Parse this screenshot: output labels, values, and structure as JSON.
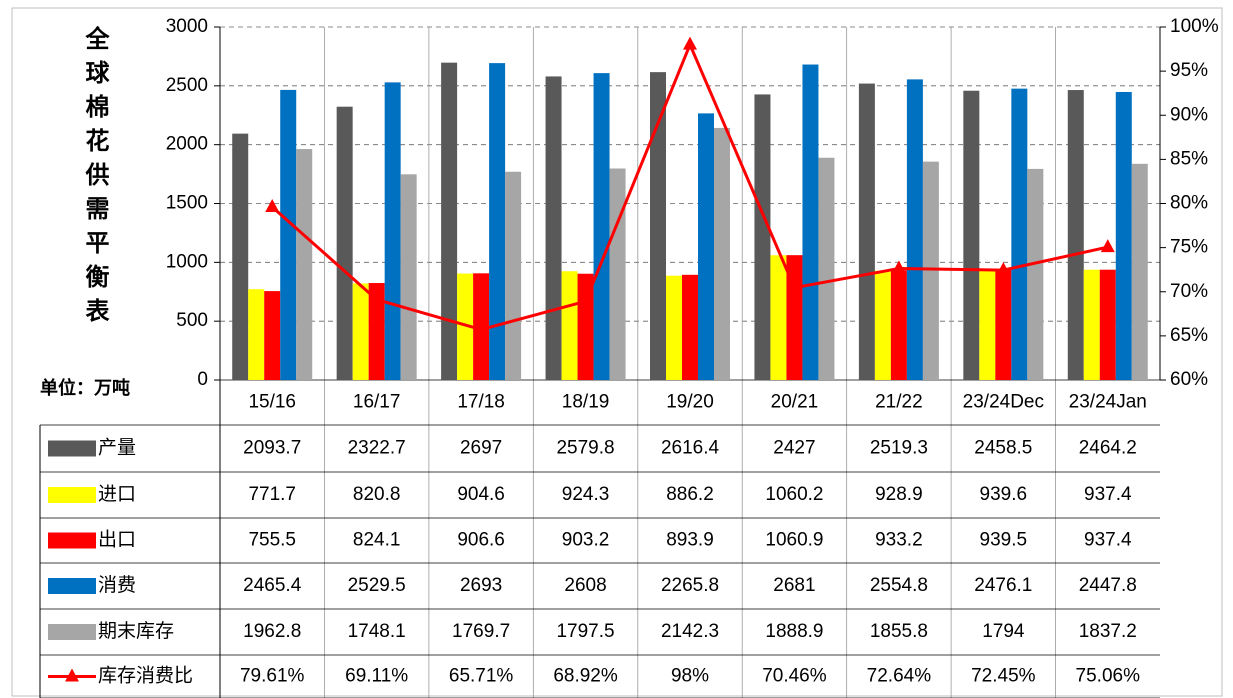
{
  "chart_data": {
    "type": "bar",
    "title": "全球棉花供需平衡表",
    "unit_label": "单位：万吨",
    "categories": [
      "15/16",
      "16/17",
      "17/18",
      "18/19",
      "19/20",
      "20/21",
      "21/22",
      "23/24Dec",
      "23/24Jan"
    ],
    "series": [
      {
        "name": "产量",
        "color": "#595959",
        "values": [
          2093.7,
          2322.7,
          2697,
          2579.8,
          2616.4,
          2427,
          2519.3,
          2458.5,
          2464.2
        ]
      },
      {
        "name": "进口",
        "color": "#ffff00",
        "values": [
          771.7,
          820.8,
          904.6,
          924.3,
          886.2,
          1060.2,
          928.9,
          939.6,
          937.4
        ]
      },
      {
        "name": "出口",
        "color": "#ff0000",
        "values": [
          755.5,
          824.1,
          906.6,
          903.2,
          893.9,
          1060.9,
          933.2,
          939.5,
          937.4
        ]
      },
      {
        "name": "消费",
        "color": "#0070c0",
        "values": [
          2465.4,
          2529.5,
          2693,
          2608,
          2265.8,
          2681,
          2554.8,
          2476.1,
          2447.8
        ]
      },
      {
        "name": "期末库存",
        "color": "#a6a6a6",
        "values": [
          1962.8,
          1748.1,
          1769.7,
          1797.5,
          2142.3,
          1888.9,
          1855.8,
          1794,
          1837.2
        ]
      },
      {
        "name": "库存消费比",
        "color": "#ff0000",
        "type": "line",
        "axis": "y2",
        "values": [
          79.61,
          69.11,
          65.71,
          68.92,
          98,
          70.46,
          72.64,
          72.45,
          75.06
        ],
        "value_labels": [
          "79.61%",
          "69.11%",
          "65.71%",
          "68.92%",
          "98%",
          "70.46%",
          "72.64%",
          "72.45%",
          "75.06%"
        ]
      }
    ],
    "ylim": [
      0,
      3000
    ],
    "yticks": [
      0,
      500,
      1000,
      1500,
      2000,
      2500,
      3000
    ],
    "y2lim": [
      60,
      100
    ],
    "y2ticks": [
      {
        "value": 60,
        "label": "60%"
      },
      {
        "value": 65,
        "label": "65%"
      },
      {
        "value": 70,
        "label": "70%"
      },
      {
        "value": 75,
        "label": "75%"
      },
      {
        "value": 80,
        "label": "80%"
      },
      {
        "value": 85,
        "label": "85%"
      },
      {
        "value": 90,
        "label": "90%"
      },
      {
        "value": 95,
        "label": "95%"
      },
      {
        "value": 100,
        "label": "100%"
      }
    ],
    "grid": true
  }
}
